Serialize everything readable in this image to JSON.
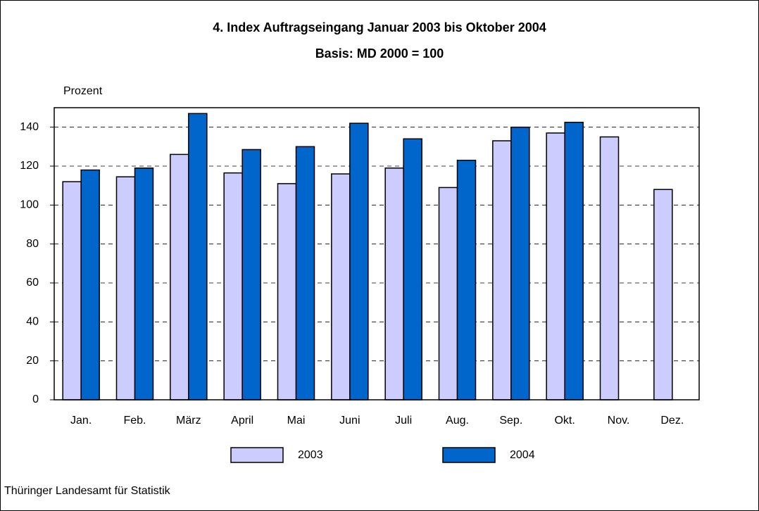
{
  "chart_data": {
    "type": "bar",
    "title": "4. Index Auftragseingang Januar 2003 bis Oktober 2004",
    "subtitle": "Basis: MD 2000 = 100",
    "y_label": "Prozent",
    "source": "Thüringer Landesamt für Statistik",
    "categories": [
      "Jan.",
      "Feb.",
      "März",
      "April",
      "Mai",
      "Juni",
      "Juli",
      "Aug.",
      "Sep.",
      "Okt.",
      "Nov.",
      "Dez."
    ],
    "series": [
      {
        "name": "2003",
        "color": "#ccccff",
        "values": [
          112,
          114.5,
          126,
          116.5,
          111,
          116,
          119,
          109,
          133,
          137,
          135,
          108
        ]
      },
      {
        "name": "2004",
        "color": "#0066cc",
        "values": [
          118,
          119,
          147,
          128.5,
          130,
          142,
          134,
          123,
          140,
          142.5,
          null,
          null
        ]
      }
    ],
    "ylim": [
      0,
      150
    ],
    "yticks": [
      0,
      20,
      40,
      60,
      80,
      100,
      120,
      140
    ],
    "grid": true
  }
}
